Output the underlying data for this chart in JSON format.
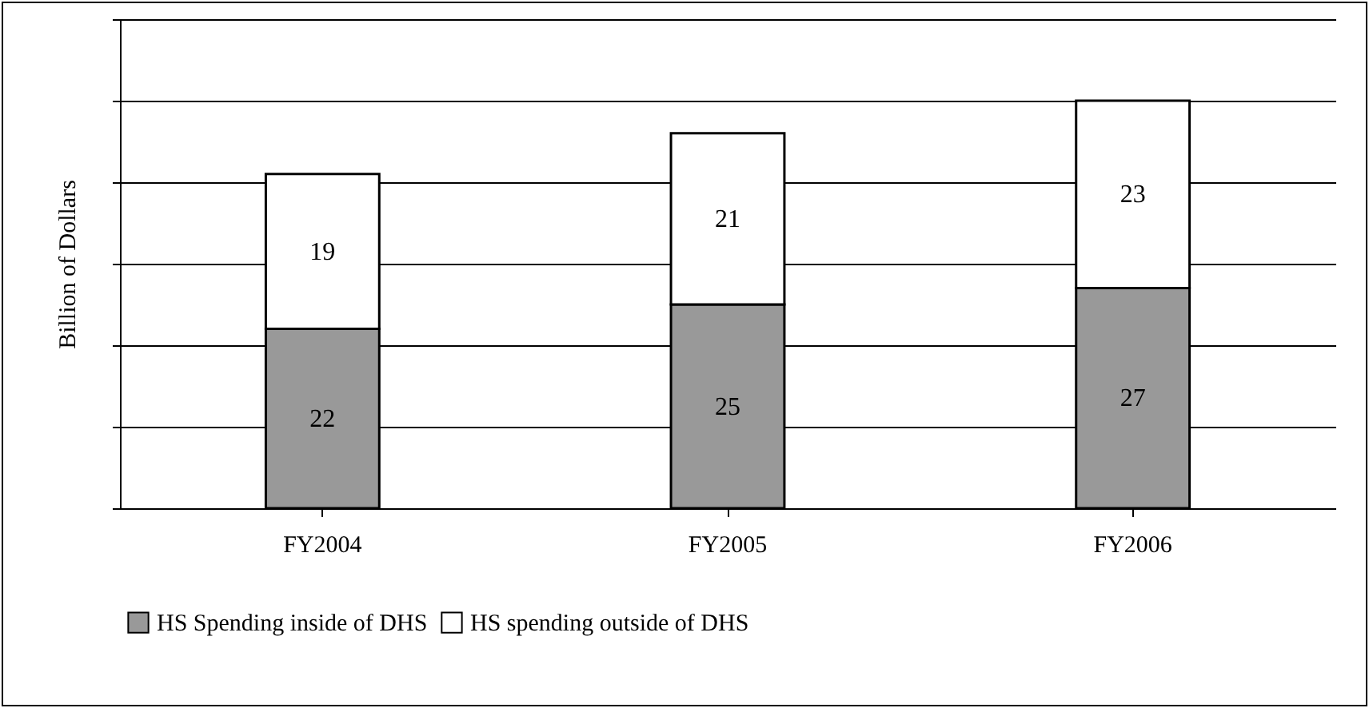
{
  "chart_data": {
    "type": "bar",
    "stacked": true,
    "ylabel": "Billion of Dollars",
    "categories": [
      "FY2004",
      "FY2005",
      "FY2006"
    ],
    "series": [
      {
        "name": "HS Spending inside of DHS",
        "color": "#999999",
        "values": [
          22,
          25,
          27
        ]
      },
      {
        "name": "HS spending outside of DHS",
        "color": "#ffffff",
        "values": [
          19,
          21,
          23
        ]
      }
    ],
    "ylim": [
      0,
      60
    ],
    "yticks": [
      {
        "value": 0,
        "label": null
      },
      {
        "value": 10,
        "label": null
      },
      {
        "value": 20,
        "label": null
      },
      {
        "value": 30,
        "label": null
      },
      {
        "value": 40,
        "label": null
      },
      {
        "value": 50,
        "label": null
      },
      {
        "value": 60,
        "label": null
      }
    ],
    "tick_labels": "x",
    "grid": "y",
    "legend": "bottom",
    "data_labels": true
  }
}
